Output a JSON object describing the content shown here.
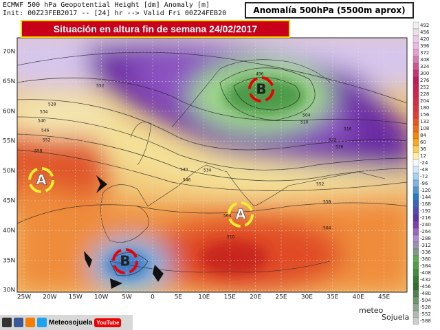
{
  "header": {
    "model_line": "ECMWF 500 hPa Geopotential Height [dm] Anomaly [m]",
    "init_line": "Init: 00Z23FEB2017 -- [24] hr --> Valid Fri 00Z24FEB20",
    "box_title": "Anomalía 500hPa (5500m aprox)",
    "banner": "Situación en altura fin de semana 24/02/2017"
  },
  "map": {
    "lat_labels": [
      "70N",
      "65N",
      "60N",
      "55N",
      "50N",
      "45N",
      "40N",
      "35N",
      "30N"
    ],
    "lon_labels": [
      "25W",
      "20W",
      "15W",
      "10W",
      "5W",
      "0",
      "5E",
      "10E",
      "15E",
      "20E",
      "25E",
      "30E",
      "35E",
      "40E",
      "45E"
    ],
    "centers": [
      "A",
      "B",
      "A",
      "B"
    ],
    "contour_labels": [
      "552",
      "528",
      "534",
      "540",
      "546",
      "552",
      "558",
      "496",
      "504",
      "510",
      "516",
      "522",
      "528",
      "534",
      "540",
      "546",
      "552",
      "558",
      "564",
      "564",
      "510"
    ]
  },
  "colorbar": {
    "labels": [
      "492",
      "456",
      "420",
      "396",
      "372",
      "348",
      "324",
      "300",
      "276",
      "252",
      "228",
      "204",
      "180",
      "156",
      "132",
      "108",
      "84",
      "60",
      "36",
      "12",
      "-24",
      "-48",
      "-72",
      "-96",
      "-120",
      "-144",
      "-168",
      "-192",
      "-216",
      "-240",
      "-264",
      "-288",
      "-312",
      "-336",
      "-360",
      "-384",
      "-408",
      "-432",
      "-456",
      "-480",
      "-504",
      "-528",
      "-552",
      "-588"
    ]
  },
  "footer": {
    "brand": "Meteosojuela",
    "youtube": "YouTube",
    "watermark_1": "meteo",
    "watermark_2": "Sojuela"
  }
}
